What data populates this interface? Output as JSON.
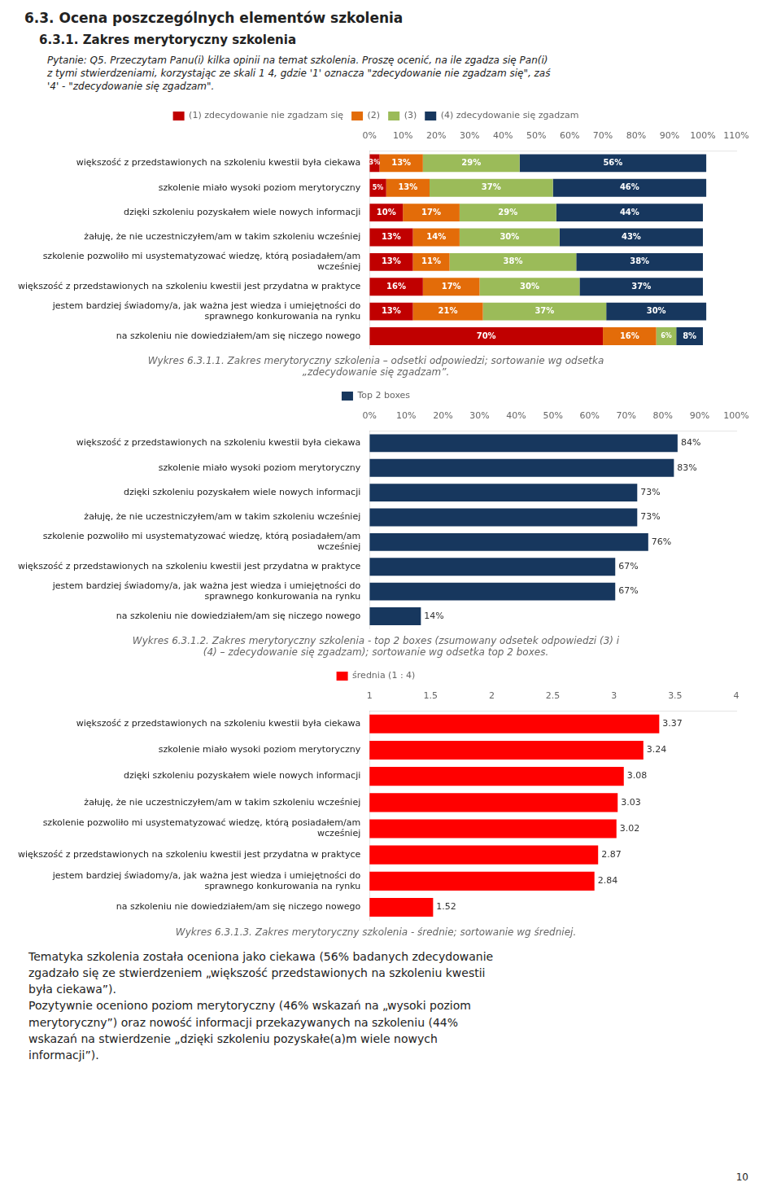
{
  "title": "6.3. Ocena poszczególnych elementów szkolenia",
  "subtitle": "6.3.1.  Zakres merytoryczny szkolenia",
  "annotations": [
    "Pytanie: Q5. Przeczytam Panu(i) kilka opinii na temat szkolenia. Proszę ocenić, na ile zgadza się Pan(i)\nz tymi stwierdzeniami, korzystając ze skali 1 4, gdzie '1' oznacza \"zdecydowanie nie zgadzam się\", zaś\n'4' - \"zdecydowanie się zgadzam\".",
    "Tematyka szkolenia została oceniona jako ciekawa (56% badanych zdecydowanie",
    "zgadzało się ze stwierdzeniem „większość przedstawionych na szkoleniu kwestii",
    "była ciekawa”).",
    "Pozytywnie oceniono poziom merytoryczny (46% wskazań na „wysoki poziom",
    "merytoryczny”) oraz nowość informacji przekazywanych na szkoleniu (44%",
    "wskazań na stwierdzenie „dzięki szkoleniu pozyskałe(a)m wiele nowych",
    "informacji”).",
    "10"
  ],
  "chart_data": [
    {
      "type": "bar",
      "orientation": "horizontal",
      "stacked": true,
      "title": "Wykres 6.3.1.1. Zakres merytoryczny szkolenia – odsetki odpowiedzi; sortowanie wg odsetka\n„zdecydowanie się zgadzam”.",
      "categories": [
        "większość z przedstawionych na szkoleniu kwestii była ciekawa",
        "szkolenie miało wysoki poziom merytoryczny",
        "dzięki szkoleniu pozyskałem wiele nowych informacji",
        "żałuję, że nie uczestniczyłem/am w takim szkoleniu wcześniej",
        "szkolenie pozwoliło mi usystematyzować wiedzę, którą posiadałem/am\nwcześniej",
        "większość z przedstawionych na szkoleniu kwestii jest przydatna w praktyce",
        "jestem bardziej świadomy/a, jak ważna jest wiedza i umiejętności do\nsprawnego konkurowania na rynku",
        "na szkoleniu nie dowiedziałem/am się niczego nowego"
      ],
      "series": [
        {
          "name": "(1) zdecydowanie nie zgadzam się",
          "color": "#c00000",
          "values": [
            3,
            5,
            10,
            13,
            13,
            16,
            13,
            70
          ],
          "value_labels": [
            "3%",
            "5%",
            "10%",
            "13%",
            "13%",
            "16%",
            "13%",
            "70%"
          ]
        },
        {
          "name": "(2)",
          "color": "#e36c09",
          "values": [
            13,
            13,
            17,
            14,
            11,
            17,
            21,
            16
          ],
          "value_labels": [
            "13%",
            "13%",
            "17%",
            "14%",
            "11%",
            "17%",
            "21%",
            "16%"
          ]
        },
        {
          "name": "(3)",
          "color": "#9bbb59",
          "values": [
            29,
            37,
            29,
            30,
            38,
            30,
            37,
            6
          ],
          "value_labels": [
            "29%",
            "37%",
            "29%",
            "30%",
            "38%",
            "30%",
            "37%",
            "6%"
          ]
        },
        {
          "name": "(4) zdecydowanie się zgadzam",
          "color": "#17375e",
          "values": [
            56,
            46,
            44,
            43,
            38,
            37,
            30,
            8
          ],
          "value_labels": [
            "56%",
            "46%",
            "44%",
            "43%",
            "38%",
            "37%",
            "30%",
            "8%"
          ]
        }
      ],
      "xlim": [
        0,
        110
      ],
      "xticks": [
        {
          "value": 0,
          "label": "0%"
        },
        {
          "value": 10,
          "label": "10%"
        },
        {
          "value": 20,
          "label": "20%"
        },
        {
          "value": 30,
          "label": "30%"
        },
        {
          "value": 40,
          "label": "40%"
        },
        {
          "value": 50,
          "label": "50%"
        },
        {
          "value": 60,
          "label": "60%"
        },
        {
          "value": 70,
          "label": "70%"
        },
        {
          "value": 80,
          "label": "80%"
        },
        {
          "value": 90,
          "label": "90%"
        },
        {
          "value": 100,
          "label": "100%"
        },
        {
          "value": 110,
          "label": "110%"
        }
      ],
      "grid": false,
      "legend": "top",
      "data_labels": true
    },
    {
      "type": "bar",
      "orientation": "horizontal",
      "title": "Wykres 6.3.1.2. Zakres merytoryczny szkolenia - top 2 boxes (zsumowany odsetek odpowiedzi (3) i\n(4) – zdecydowanie się zgadzam); sortowanie wg odsetka top 2 boxes.",
      "categories": [
        "większość z przedstawionych na szkoleniu kwestii była ciekawa",
        "szkolenie miało wysoki poziom merytoryczny",
        "dzięki szkoleniu pozyskałem wiele nowych informacji",
        "żałuję, że nie uczestniczyłem/am w takim szkoleniu wcześniej",
        "szkolenie pozwoliło mi usystematyzować wiedzę, którą posiadałem/am\nwcześniej",
        "większość z przedstawionych na szkoleniu kwestii jest przydatna w praktyce",
        "jestem bardziej świadomy/a, jak ważna jest wiedza i umiejętności do\nsprawnego konkurowania na rynku",
        "na szkoleniu nie dowiedziałem/am się niczego nowego"
      ],
      "series": [
        {
          "name": "Top 2 boxes",
          "color": "#17375e",
          "values": [
            84,
            83,
            73,
            73,
            76,
            67,
            67,
            14
          ],
          "value_labels": [
            "84%",
            "83%",
            "73%",
            "73%",
            "76%",
            "67%",
            "67%",
            "14%"
          ]
        }
      ],
      "xlim": [
        0,
        100
      ],
      "xticks": [
        {
          "value": 0,
          "label": "0%"
        },
        {
          "value": 10,
          "label": "10%"
        },
        {
          "value": 20,
          "label": "20%"
        },
        {
          "value": 30,
          "label": "30%"
        },
        {
          "value": 40,
          "label": "40%"
        },
        {
          "value": 50,
          "label": "50%"
        },
        {
          "value": 60,
          "label": "60%"
        },
        {
          "value": 70,
          "label": "70%"
        },
        {
          "value": 80,
          "label": "80%"
        },
        {
          "value": 90,
          "label": "90%"
        },
        {
          "value": 100,
          "label": "100%"
        }
      ],
      "grid": false,
      "legend": "top",
      "data_labels": true
    },
    {
      "type": "bar",
      "orientation": "horizontal",
      "title": "Wykres 6.3.1.3. Zakres merytoryczny szkolenia - średnie; sortowanie wg średniej.",
      "categories": [
        "większość z przedstawionych na szkoleniu kwestii była ciekawa",
        "szkolenie miało wysoki poziom merytoryczny",
        "dzięki szkoleniu pozyskałem wiele nowych informacji",
        "żałuję, że nie uczestniczyłem/am w takim szkoleniu wcześniej",
        "szkolenie pozwoliło mi usystematyzować wiedzę, którą posiadałem/am\nwcześniej",
        "większość z przedstawionych na szkoleniu kwestii jest przydatna w praktyce",
        "jestem bardziej świadomy/a, jak ważna jest wiedza i umiejętności do\nsprawnego konkurowania na rynku",
        "na szkoleniu nie dowiedziałem/am się niczego nowego"
      ],
      "series": [
        {
          "name": "średnia (1 : 4)",
          "color": "#ff0000",
          "values": [
            3.37,
            3.24,
            3.08,
            3.03,
            3.02,
            2.87,
            2.84,
            1.52
          ]
        }
      ],
      "xlim": [
        1,
        4
      ],
      "xticks": [
        1,
        1.5,
        2,
        2.5,
        3,
        3.5,
        4
      ],
      "grid": false,
      "legend": "top",
      "data_labels": true
    }
  ]
}
